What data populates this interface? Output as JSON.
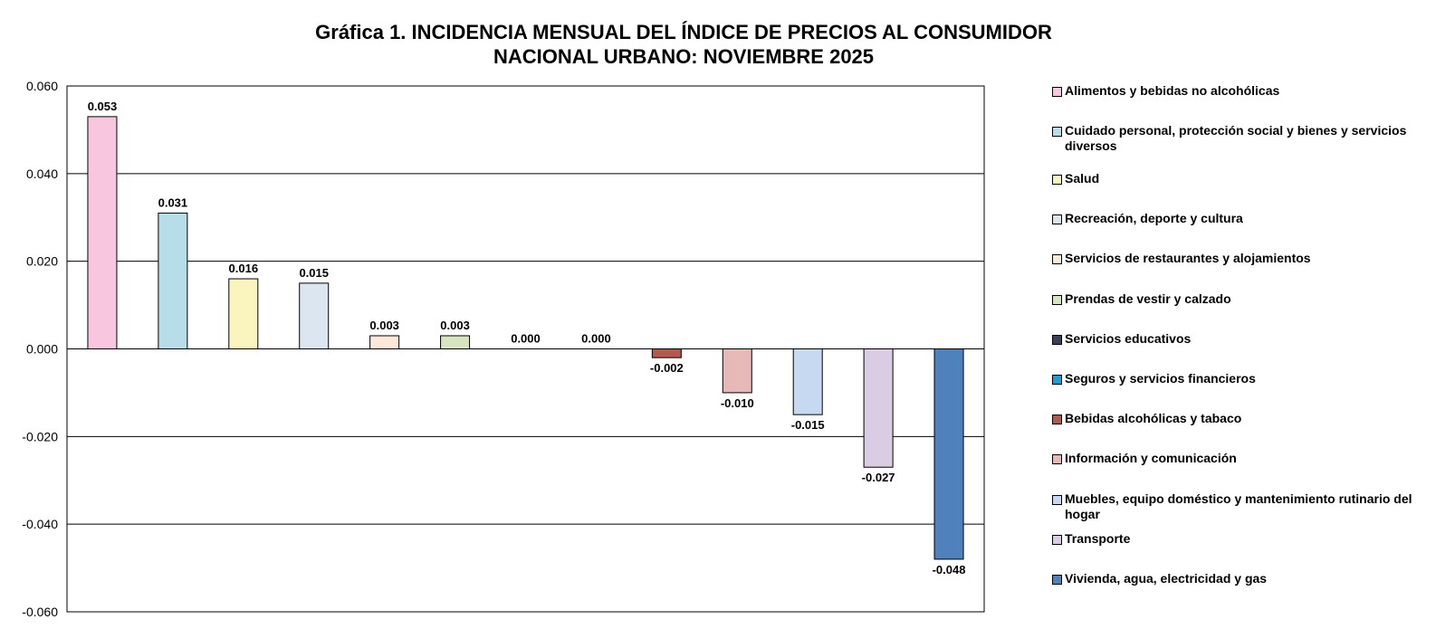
{
  "chart_data": {
    "type": "bar",
    "title": "Gráfica 1.  INCIDENCIA MENSUAL DEL ÍNDICE DE PRECIOS AL CONSUMIDOR",
    "subtitle": "NACIONAL URBANO: NOVIEMBRE 2025",
    "xlabel": "",
    "ylabel": "",
    "ylim": [
      -0.06,
      0.06
    ],
    "yticks": [
      "0.060",
      "0.040",
      "0.020",
      "0.000",
      "-0.020",
      "-0.040",
      "-0.060"
    ],
    "ytick_values": [
      0.06,
      0.04,
      0.02,
      0.0,
      -0.02,
      -0.04,
      -0.06
    ],
    "grid": true,
    "legend_position": "right",
    "categories": [
      "Alimentos y bebidas no alcohólicas",
      "Cuidado personal, protección social y bienes y servicios diversos",
      "Salud",
      "Recreación, deporte y cultura",
      "Servicios de restaurantes y alojamientos",
      "Prendas de vestir y calzado",
      "Servicios educativos",
      "Seguros y servicios financieros",
      "Bebidas alcohólicas y tabaco",
      "Información y comunicación",
      "Muebles, equipo doméstico y mantenimiento rutinario del hogar",
      "Transporte",
      "Vivienda, agua, electricidad y gas"
    ],
    "values": [
      0.053,
      0.031,
      0.016,
      0.015,
      0.003,
      0.003,
      0.0,
      0.0,
      -0.002,
      -0.01,
      -0.015,
      -0.027,
      -0.048
    ],
    "value_labels": [
      "0.053",
      "0.031",
      "0.016",
      "0.015",
      "0.003",
      "0.003",
      "0.000",
      "0.000",
      "-0.002",
      "-0.010",
      "-0.015",
      "-0.027",
      "-0.048"
    ],
    "colors": [
      "#F9C6E0",
      "#B6DDE8",
      "#FAF5BE",
      "#DCE6F1",
      "#FDE9D9",
      "#D7E4BD",
      "#3B3F5C",
      "#1F9BD6",
      "#B35A4E",
      "#E6B9B8",
      "#C6D9F1",
      "#D9CCE3",
      "#4F81BD"
    ]
  }
}
